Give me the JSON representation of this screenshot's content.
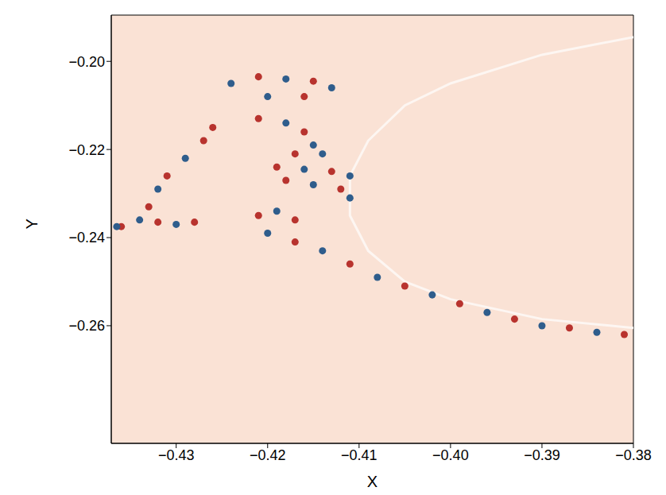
{
  "chart_data": {
    "type": "scatter",
    "x_label": "X",
    "y_label": "Y",
    "xlim": [
      -0.4371,
      -0.38
    ],
    "ylim": [
      -0.2867,
      -0.1895
    ],
    "xticks": [
      {
        "value": -0.43,
        "label": "−0.43"
      },
      {
        "value": -0.42,
        "label": "−0.42"
      },
      {
        "value": -0.41,
        "label": "−0.41"
      },
      {
        "value": -0.4,
        "label": "−0.40"
      },
      {
        "value": -0.39,
        "label": "−0.39"
      },
      {
        "value": -0.38,
        "label": "−0.38"
      }
    ],
    "yticks": [
      {
        "value": -0.26,
        "label": "−0.26"
      },
      {
        "value": -0.24,
        "label": "−0.24"
      },
      {
        "value": -0.22,
        "label": "−0.22"
      },
      {
        "value": -0.2,
        "label": "−0.20"
      }
    ],
    "grid": false,
    "color": "#fae2d5",
    "series": [
      {
        "type": "line",
        "color": "#fdf6f2",
        "line_style": "solid",
        "x": [
          -0.38,
          -0.39,
          -0.4,
          -0.405,
          -0.409,
          -0.411,
          -0.411,
          -0.409,
          -0.405,
          -0.4,
          -0.39,
          -0.38
        ],
        "y": [
          -0.1945,
          -0.1985,
          -0.205,
          -0.21,
          -0.218,
          -0.226,
          -0.235,
          -0.243,
          -0.25,
          -0.254,
          -0.2585,
          -0.2605
        ]
      },
      {
        "type": "scatter",
        "color": "#b8332e",
        "marker": "circle",
        "x": [
          -0.426,
          -0.421,
          -0.415,
          -0.416,
          -0.427,
          -0.431,
          -0.433,
          -0.436,
          -0.421,
          -0.416,
          -0.417,
          -0.419,
          -0.413,
          -0.418,
          -0.412,
          -0.421,
          -0.417,
          -0.417,
          -0.411,
          -0.405,
          -0.399,
          -0.393,
          -0.387,
          -0.381,
          -0.432,
          -0.428
        ],
        "y": [
          -0.215,
          -0.2035,
          -0.2045,
          -0.208,
          -0.218,
          -0.226,
          -0.233,
          -0.2375,
          -0.213,
          -0.216,
          -0.221,
          -0.224,
          -0.225,
          -0.227,
          -0.229,
          -0.235,
          -0.236,
          -0.241,
          -0.246,
          -0.251,
          -0.255,
          -0.2585,
          -0.2605,
          -0.262,
          -0.2365,
          -0.2365
        ]
      },
      {
        "type": "scatter",
        "color": "#2f5d8c",
        "marker": "circle",
        "x": [
          -0.424,
          -0.418,
          -0.413,
          -0.42,
          -0.429,
          -0.432,
          -0.434,
          -0.4365,
          -0.418,
          -0.415,
          -0.414,
          -0.416,
          -0.411,
          -0.415,
          -0.411,
          -0.419,
          -0.42,
          -0.414,
          -0.408,
          -0.402,
          -0.396,
          -0.39,
          -0.384,
          -0.43
        ],
        "y": [
          -0.205,
          -0.204,
          -0.206,
          -0.208,
          -0.222,
          -0.229,
          -0.236,
          -0.2375,
          -0.214,
          -0.219,
          -0.221,
          -0.2245,
          -0.226,
          -0.228,
          -0.231,
          -0.234,
          -0.239,
          -0.243,
          -0.249,
          -0.253,
          -0.257,
          -0.26,
          -0.2615,
          -0.237
        ]
      }
    ]
  }
}
